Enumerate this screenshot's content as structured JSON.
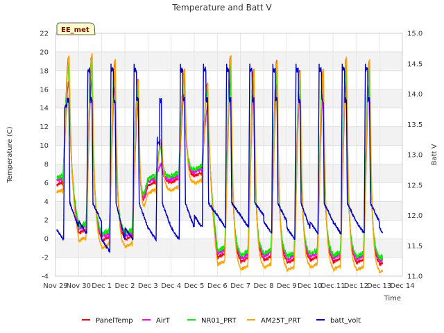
{
  "chart_data": {
    "type": "line",
    "title": "Temperature and Batt V",
    "xlabel": "Time",
    "ylabel": "Temperature (C)",
    "ylabel_right": "Batt V",
    "badge": "EE_met",
    "x_ticks": [
      "Nov 29",
      "Nov 30",
      "Dec 1",
      "Dec 2",
      "Dec 3",
      "Dec 4",
      "Dec 5",
      "Dec 6",
      "Dec 7",
      "Dec 8",
      "Dec 9",
      "Dec 10",
      "Dec 11",
      "Dec 12",
      "Dec 13",
      "Dec 14"
    ],
    "xlim": [
      0,
      15
    ],
    "ylim": [
      -4,
      22
    ],
    "y_ticks": [
      "-4",
      "-2",
      "0",
      "2",
      "4",
      "6",
      "8",
      "10",
      "12",
      "14",
      "16",
      "18",
      "20",
      "22"
    ],
    "ylim_right": [
      11.0,
      15.0
    ],
    "y_ticks_right": [
      "11.0",
      "11.5",
      "12.0",
      "12.5",
      "13.0",
      "13.5",
      "14.0",
      "14.5",
      "15.0"
    ],
    "grid": true,
    "legend_position": "bottom",
    "days_max_min": [
      [
        19.4,
        5.5
      ],
      [
        19.7,
        0.4
      ],
      [
        19.0,
        -0.4
      ],
      [
        17.0,
        -0.3
      ],
      [
        10.5,
        5.5
      ],
      [
        18.0,
        5.8
      ],
      [
        16.5,
        6.5
      ],
      [
        19.5,
        -2.2
      ],
      [
        18.0,
        -2.7
      ],
      [
        19.0,
        -2.5
      ],
      [
        18.0,
        -2.8
      ],
      [
        18.0,
        -2.5
      ],
      [
        19.3,
        -2.7
      ],
      [
        19.0,
        -2.8
      ],
      [
        18.5,
        -3.0
      ]
    ],
    "batt_volt_daily_max": [
      13.9,
      14.5,
      14.5,
      14.5,
      13.3,
      14.5,
      14.5,
      14.5,
      14.5,
      14.5,
      14.5,
      14.5,
      14.5,
      14.5,
      14.5
    ],
    "batt_volt_daily_min": [
      11.6,
      11.7,
      11.4,
      11.6,
      11.6,
      11.6,
      11.8,
      11.8,
      11.8,
      11.7,
      11.6,
      11.7,
      11.7,
      11.7,
      11.6
    ],
    "series": [
      {
        "name": "PanelTemp",
        "color": "#ff0000",
        "axis": "left"
      },
      {
        "name": "AirT",
        "color": "#ff00ff",
        "axis": "left"
      },
      {
        "name": "NR01_PRT",
        "color": "#00ee00",
        "axis": "left"
      },
      {
        "name": "AM25T_PRT",
        "color": "#ffa500",
        "axis": "left"
      },
      {
        "name": "batt_volt",
        "color": "#0000cc",
        "axis": "right"
      }
    ]
  }
}
